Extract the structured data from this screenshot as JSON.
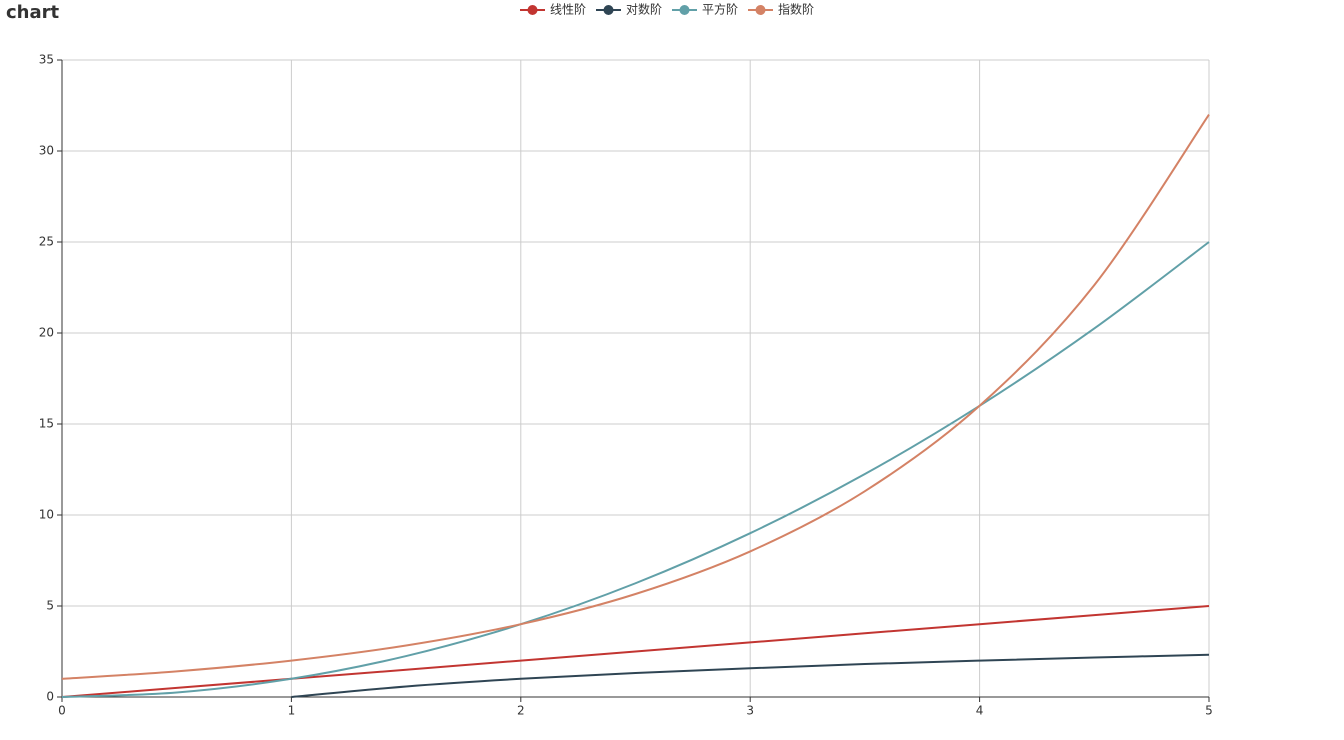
{
  "chart_data": {
    "type": "line",
    "title": "chart",
    "x": [
      0,
      0.5,
      1,
      1.5,
      2,
      2.5,
      3,
      3.5,
      4,
      4.5,
      5
    ],
    "series": [
      {
        "name": "线性阶",
        "color": "#c23531",
        "values": [
          0,
          0.5,
          1,
          1.5,
          2,
          2.5,
          3,
          3.5,
          4,
          4.5,
          5
        ]
      },
      {
        "name": "对数阶",
        "color": "#2f4554",
        "values": [
          null,
          null,
          0,
          0.58,
          1,
          1.32,
          1.58,
          1.81,
          2,
          2.17,
          2.32
        ]
      },
      {
        "name": "平方阶",
        "color": "#61a0a8",
        "values": [
          0,
          0.25,
          1,
          2.25,
          4,
          6.25,
          9,
          12.25,
          16,
          20.25,
          25
        ]
      },
      {
        "name": "指数阶",
        "color": "#d48265",
        "values": [
          1,
          1.41,
          2,
          2.83,
          4,
          5.66,
          8,
          11.31,
          16,
          22.63,
          32
        ]
      }
    ],
    "xlim": [
      0,
      5
    ],
    "xticks": [
      0,
      1,
      2,
      3,
      4,
      5
    ],
    "ylim": [
      0,
      35
    ],
    "yticks": [
      0,
      5,
      10,
      15,
      20,
      25,
      30,
      35
    ],
    "grid": true,
    "legend": "top"
  }
}
